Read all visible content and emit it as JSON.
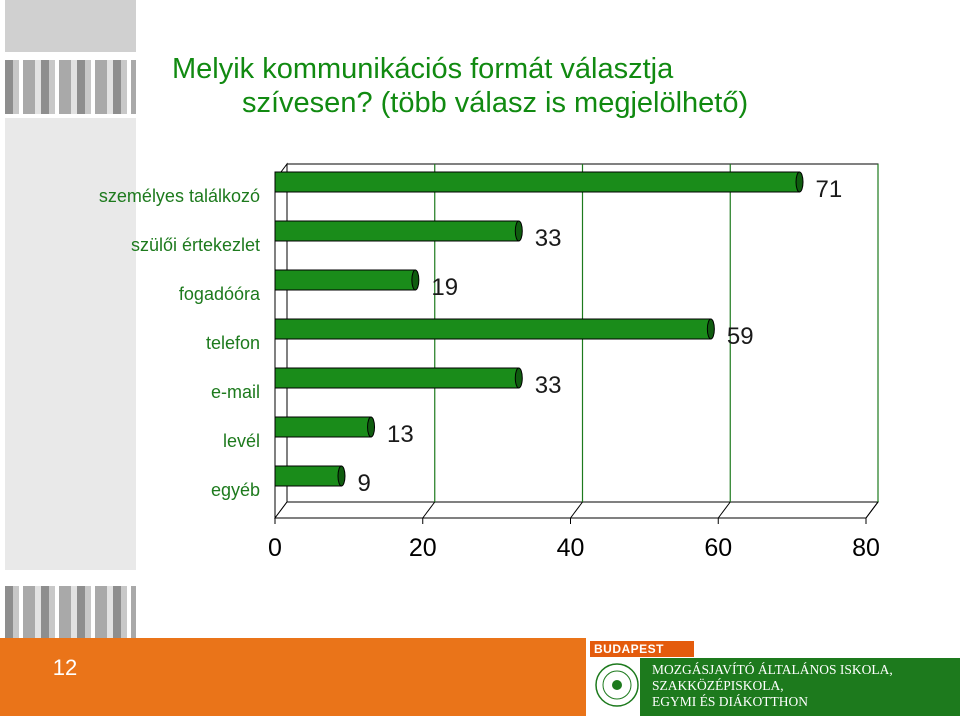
{
  "title": {
    "line1": "Melyik kommunikációs formát választja",
    "line2": "szívesen? (több válasz is megjelölhető)"
  },
  "chart_data": {
    "type": "bar",
    "orientation": "horizontal",
    "categories": [
      "személyes találkozó",
      "szülői értekezlet",
      "fogadóóra",
      "telefon",
      "e-mail",
      "levél",
      "egyéb"
    ],
    "values": [
      71,
      33,
      19,
      59,
      33,
      13,
      9
    ],
    "xlim": [
      0,
      80
    ],
    "xticks": [
      0,
      20,
      40,
      60,
      80
    ],
    "grid": true,
    "legend": "none",
    "bar_color": "#1a8c1a"
  },
  "footer": {
    "page_number": "12",
    "logo_text": "BUDAPEST",
    "school_lines": [
      "MOZGÁSJAVÍTÓ ÁLTALÁNOS ISKOLA,",
      "SZAKKÖZÉPISKOLA,",
      "EGYMI ÉS DIÁKOTTHON"
    ],
    "colors": {
      "orange": "#ea7419",
      "green": "#1d7a1d"
    }
  }
}
